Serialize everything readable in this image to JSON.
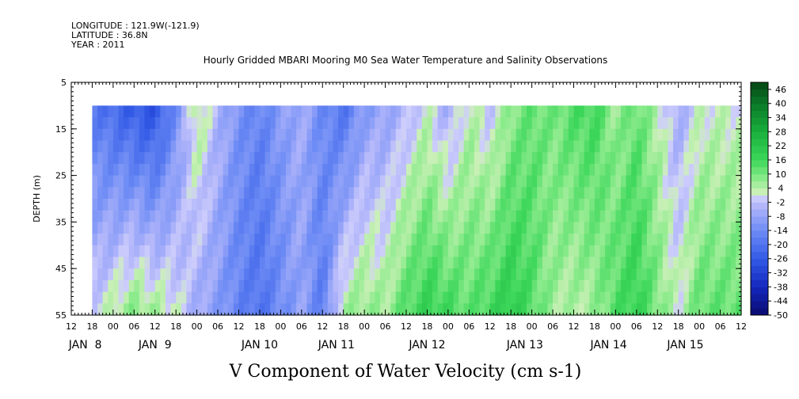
{
  "header": {
    "longitude": "LONGITUDE : 121.9W(-121.9)",
    "latitude": "LATITUDE : 36.8N",
    "year": "YEAR : 2011"
  },
  "chart_data": {
    "type": "heatmap",
    "title": "Hourly Gridded MBARI Mooring M0 Sea Water Temperature and Salinity Observations",
    "xlabel": "V Component of Water Velocity (cm s-1)",
    "ylabel": "DEPTH (m)",
    "ylim": [
      5,
      55
    ],
    "y_inverted": true,
    "y_ticks": [
      5,
      15,
      25,
      35,
      45,
      55
    ],
    "x_hour_ticks": [
      "12",
      "18",
      "00",
      "06",
      "12",
      "18",
      "00",
      "06",
      "12",
      "18",
      "00",
      "06",
      "12",
      "18",
      "00",
      "06",
      "12",
      "18",
      "00",
      "06",
      "12",
      "18",
      "00",
      "06",
      "12",
      "18",
      "00",
      "06",
      "12",
      "18",
      "00",
      "06",
      "12"
    ],
    "x_day_labels": [
      "JAN  8",
      "JAN  9",
      "JAN 10",
      "JAN 11",
      "JAN 12",
      "JAN 13",
      "JAN 14",
      "JAN 15"
    ],
    "data_depth_range": [
      10,
      55
    ],
    "colorbar": {
      "ticks": [
        46,
        40,
        34,
        28,
        22,
        16,
        10,
        4,
        -2,
        -8,
        -14,
        -20,
        -26,
        -32,
        -38,
        -44,
        -50
      ],
      "range": [
        -50,
        49
      ],
      "step": 3
    },
    "profile_columns": [
      {
        "time": 0,
        "surface": -18,
        "bottom": 0
      },
      {
        "time": 6,
        "surface": -22,
        "bottom": 4
      },
      {
        "time": 12,
        "surface": -26,
        "bottom": 9
      },
      {
        "time": 18,
        "surface": -28,
        "bottom": 6
      },
      {
        "time": 24,
        "surface": -14,
        "bottom": 2
      },
      {
        "time": 30,
        "surface": 6,
        "bottom": -6
      },
      {
        "time": 36,
        "surface": -4,
        "bottom": -10
      },
      {
        "time": 42,
        "surface": -12,
        "bottom": -16
      },
      {
        "time": 48,
        "surface": -16,
        "bottom": -20
      },
      {
        "time": 54,
        "surface": -10,
        "bottom": -14
      },
      {
        "time": 60,
        "surface": -6,
        "bottom": -8
      },
      {
        "time": 66,
        "surface": -14,
        "bottom": -18
      },
      {
        "time": 72,
        "surface": -20,
        "bottom": 6
      },
      {
        "time": 78,
        "surface": -10,
        "bottom": 8
      },
      {
        "time": 84,
        "surface": -8,
        "bottom": 6
      },
      {
        "time": 90,
        "surface": -4,
        "bottom": 14
      },
      {
        "time": 96,
        "surface": 2,
        "bottom": 18
      },
      {
        "time": 102,
        "surface": -6,
        "bottom": 16
      },
      {
        "time": 108,
        "surface": 4,
        "bottom": 12
      },
      {
        "time": 114,
        "surface": -2,
        "bottom": 16
      },
      {
        "time": 120,
        "surface": 8,
        "bottom": 20
      },
      {
        "time": 126,
        "surface": 12,
        "bottom": 14
      },
      {
        "time": 132,
        "surface": 10,
        "bottom": 6
      },
      {
        "time": 138,
        "surface": 14,
        "bottom": 4
      },
      {
        "time": 144,
        "surface": 16,
        "bottom": 6
      },
      {
        "time": 150,
        "surface": 6,
        "bottom": 14
      },
      {
        "time": 156,
        "surface": 12,
        "bottom": 18
      },
      {
        "time": 162,
        "surface": 4,
        "bottom": 10
      },
      {
        "time": 168,
        "surface": -6,
        "bottom": 2
      },
      {
        "time": 174,
        "surface": 2,
        "bottom": 12
      }
    ]
  }
}
